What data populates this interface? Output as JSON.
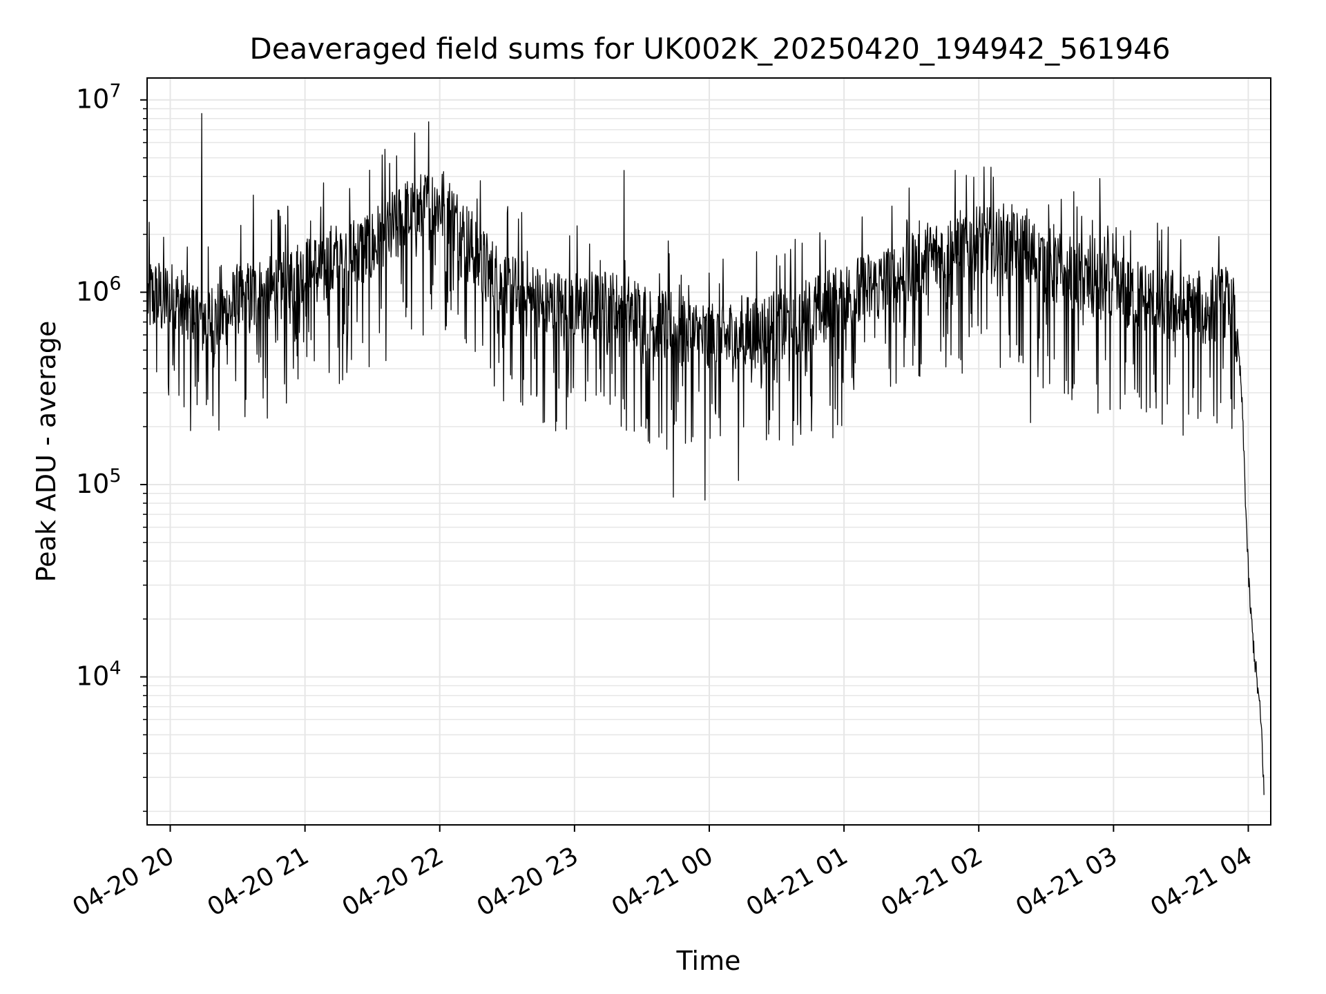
{
  "chart_data": {
    "type": "line",
    "title": "Deaveraged field sums for UK002K_20250420_194942_561946",
    "xlabel": "Time",
    "ylabel": "Peak ADU - average",
    "yscale": "log",
    "ylim": [
      1700,
      13000000
    ],
    "xlim": [
      "2025-04-20 19:49:42",
      "2025-04-21 04:10:00"
    ],
    "grid": true,
    "x_ticks": [
      "04-20 20",
      "04-20 21",
      "04-20 22",
      "04-20 23",
      "04-21 00",
      "04-21 01",
      "04-21 02",
      "04-21 03",
      "04-21 04"
    ],
    "x_tick_times": [
      "2025-04-20 20:00",
      "2025-04-20 21:00",
      "2025-04-20 22:00",
      "2025-04-20 23:00",
      "2025-04-21 00:00",
      "2025-04-21 01:00",
      "2025-04-21 02:00",
      "2025-04-21 03:00",
      "2025-04-21 04:00"
    ],
    "y_ticks": [
      {
        "value": 10000,
        "base": "10",
        "exp": "4"
      },
      {
        "value": 100000,
        "base": "10",
        "exp": "5"
      },
      {
        "value": 1000000,
        "base": "10",
        "exp": "6"
      },
      {
        "value": 10000000,
        "base": "10",
        "exp": "7"
      }
    ],
    "line_color": "#000000",
    "grid_color": "#e6e6e6",
    "series": [
      {
        "trend": [
          [
            "2025-04-20 19:50",
            950000
          ],
          [
            "2025-04-20 20:00",
            900000
          ],
          [
            "2025-04-20 20:10",
            750000
          ],
          [
            "2025-04-20 20:20",
            700000
          ],
          [
            "2025-04-20 20:30",
            850000
          ],
          [
            "2025-04-20 20:45",
            1000000
          ],
          [
            "2025-04-20 21:00",
            1200000
          ],
          [
            "2025-04-20 21:15",
            1450000
          ],
          [
            "2025-04-20 21:30",
            1700000
          ],
          [
            "2025-04-20 21:45",
            2400000
          ],
          [
            "2025-04-20 22:00",
            2900000
          ],
          [
            "2025-04-20 22:10",
            2000000
          ],
          [
            "2025-04-20 22:20",
            1300000
          ],
          [
            "2025-04-20 22:30",
            1000000
          ],
          [
            "2025-04-20 22:45",
            850000
          ],
          [
            "2025-04-20 23:00",
            800000
          ],
          [
            "2025-04-20 23:20",
            800000
          ],
          [
            "2025-04-20 23:40",
            650000
          ],
          [
            "2025-04-21 00:00",
            550000
          ],
          [
            "2025-04-21 00:20",
            600000
          ],
          [
            "2025-04-21 00:40",
            700000
          ],
          [
            "2025-04-21 01:00",
            900000
          ],
          [
            "2025-04-21 01:20",
            1100000
          ],
          [
            "2025-04-21 01:40",
            1500000
          ],
          [
            "2025-04-21 02:00",
            1800000
          ],
          [
            "2025-04-21 02:20",
            1600000
          ],
          [
            "2025-04-21 02:40",
            1200000
          ],
          [
            "2025-04-21 03:00",
            1000000
          ],
          [
            "2025-04-21 03:20",
            850000
          ],
          [
            "2025-04-21 03:40",
            750000
          ],
          [
            "2025-04-21 03:50",
            850000
          ],
          [
            "2025-04-21 03:55",
            600000
          ],
          [
            "2025-04-21 03:57",
            300000
          ],
          [
            "2025-04-21 03:58",
            150000
          ],
          [
            "2025-04-21 03:59",
            70000
          ],
          [
            "2025-04-21 04:00",
            35000
          ],
          [
            "2025-04-21 04:01",
            22000
          ],
          [
            "2025-04-21 04:03",
            12000
          ],
          [
            "2025-04-21 04:05",
            7000
          ],
          [
            "2025-04-21 04:06",
            5000
          ],
          [
            "2025-04-21 04:07",
            2500
          ]
        ],
        "spikes": [
          [
            "2025-04-20 20:14",
            8500000
          ],
          [
            "2025-04-20 20:37",
            3200000
          ],
          [
            "2025-04-20 21:55",
            7700000
          ],
          [
            "2025-04-20 22:18",
            3800000
          ],
          [
            "2025-04-20 23:22",
            4300000
          ],
          [
            "2025-04-21 02:54",
            3900000
          ],
          [
            "2025-04-21 03:47",
            1950000
          ]
        ],
        "dips": [
          [
            "2025-04-20 20:12",
            260000
          ],
          [
            "2025-04-20 20:16",
            260000
          ],
          [
            "2025-04-20 22:46",
            210000
          ],
          [
            "2025-04-20 23:44",
            86000
          ],
          [
            "2025-04-20 23:58",
            83000
          ],
          [
            "2025-04-21 00:13",
            105000
          ],
          [
            "2025-04-21 02:23",
            210000
          ],
          [
            "2025-04-21 02:53",
            235000
          ],
          [
            "2025-04-21 00:55",
            175000
          ]
        ]
      }
    ]
  }
}
